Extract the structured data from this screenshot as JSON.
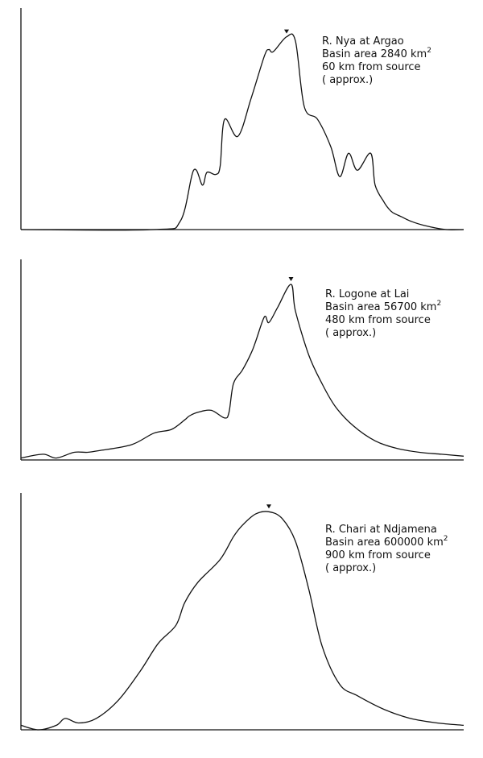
{
  "chart_data": [
    {
      "type": "line",
      "annotation": {
        "river": "R. Nya at Argao",
        "basin_prefix": "Basin area",
        "basin_area": "2840",
        "unit": "km",
        "unit_exp": "2",
        "distance": "60 km from source",
        "approx": "( approx.)"
      },
      "axes": "unlabelled",
      "grid": false,
      "peak_marker": true,
      "x": [
        0,
        30,
        36,
        39,
        41,
        42,
        44,
        45,
        46,
        49,
        52,
        55,
        56,
        57,
        60,
        62,
        64,
        67,
        70,
        72,
        74,
        76,
        79,
        80,
        82,
        83,
        84,
        86,
        88,
        91,
        96,
        100
      ],
      "y": [
        0,
        0,
        4,
        28,
        21,
        27,
        26,
        30,
        52,
        44,
        62,
        82,
        85,
        84,
        91,
        89,
        58,
        52,
        39,
        25,
        36,
        28,
        36,
        21,
        13,
        10,
        8,
        6,
        4,
        2,
        0,
        0
      ]
    },
    {
      "type": "line",
      "annotation": {
        "river": "R. Logone at Lai",
        "basin_prefix": "Basin area",
        "basin_area": "56700",
        "unit": "km",
        "unit_exp": "2",
        "distance": "480 km from source",
        "approx": "( approx.)"
      },
      "axes": "unlabelled",
      "grid": false,
      "peak_marker": true,
      "x": [
        0,
        5,
        8,
        12,
        15,
        18,
        25,
        30,
        34,
        37,
        38,
        40,
        43,
        46,
        47,
        48,
        50,
        52,
        53,
        55,
        56,
        58,
        61,
        62,
        65,
        68,
        71,
        75,
        80,
        85,
        90,
        95,
        100
      ],
      "y": [
        1,
        3,
        1,
        4,
        4,
        5,
        8,
        14,
        16,
        21,
        23,
        25,
        26,
        22,
        25,
        40,
        47,
        56,
        62,
        75,
        72,
        80,
        92,
        78,
        55,
        40,
        28,
        18,
        10,
        6,
        4,
        3,
        2
      ]
    },
    {
      "type": "line",
      "annotation": {
        "river": "R. Chari at Ndjamena",
        "basin_prefix": "Basin area",
        "basin_area": "600000",
        "unit": "km",
        "unit_exp": "2",
        "distance": "900 km from source",
        "approx": "( approx.)"
      },
      "axes": "unlabelled",
      "grid": false,
      "peak_marker": true,
      "x": [
        0,
        4,
        8,
        10,
        13,
        17,
        22,
        27,
        31,
        35,
        37,
        40,
        45,
        48,
        50,
        53,
        56,
        59,
        62,
        65,
        68,
        72,
        76,
        82,
        88,
        94,
        100
      ],
      "y": [
        2,
        0,
        2,
        5,
        3,
        5,
        13,
        26,
        38,
        46,
        56,
        65,
        75,
        85,
        90,
        95,
        96,
        93,
        83,
        62,
        37,
        20,
        15,
        9,
        5,
        3,
        2
      ]
    }
  ]
}
